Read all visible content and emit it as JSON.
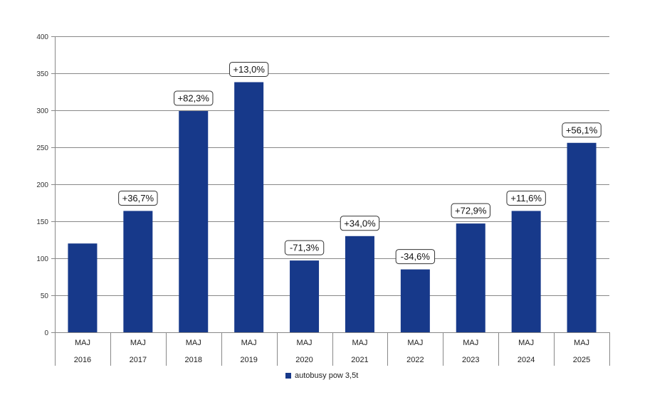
{
  "chart_data": {
    "type": "bar",
    "categories": [
      "MAJ",
      "MAJ",
      "MAJ",
      "MAJ",
      "MAJ",
      "MAJ",
      "MAJ",
      "MAJ",
      "MAJ",
      "MAJ"
    ],
    "groups": [
      "2016",
      "2017",
      "2018",
      "2019",
      "2020",
      "2021",
      "2022",
      "2023",
      "2024",
      "2025"
    ],
    "series": [
      {
        "name": "autobusy pow 3,5t",
        "values": [
          120,
          164,
          299,
          338,
          97,
          130,
          85,
          147,
          164,
          256
        ],
        "labels": [
          "",
          "+36,7%",
          "+82,3%",
          "+13,0%",
          "-71,3%",
          "+34,0%",
          "-34,6%",
          "+72,9%",
          "+11,6%",
          "+56,1%"
        ]
      }
    ],
    "ylim": [
      0,
      400
    ],
    "yticks": [
      0,
      50,
      100,
      150,
      200,
      250,
      300,
      350,
      400
    ],
    "grid": true,
    "legend_position": "bottom",
    "colors": {
      "bar": "#17398a",
      "grid": "#888888",
      "axis": "#888888"
    }
  }
}
